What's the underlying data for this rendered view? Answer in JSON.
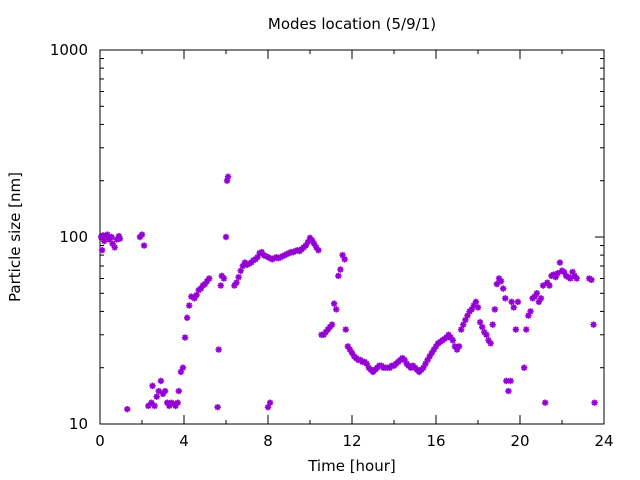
{
  "chart_data": {
    "type": "scatter",
    "title": "Modes location (5/9/1)",
    "xlabel": "Time [hour]",
    "ylabel": "Particle size [nm]",
    "xlim": [
      0,
      24
    ],
    "ylim": [
      10,
      1000
    ],
    "y_scale": "log",
    "x_ticks": [
      0,
      4,
      8,
      12,
      16,
      20,
      24
    ],
    "x_tick_labels": [
      "0",
      "4",
      "8",
      "12",
      "16",
      "20",
      "24"
    ],
    "y_ticks": [
      10,
      100,
      1000
    ],
    "y_tick_labels": [
      "10",
      "100",
      "1000"
    ],
    "grid": false,
    "marker": "asterisk",
    "color": "#9400d3",
    "points": [
      [
        0.05,
        100
      ],
      [
        0.1,
        85
      ],
      [
        0.15,
        102
      ],
      [
        0.2,
        95
      ],
      [
        0.3,
        101
      ],
      [
        0.35,
        103
      ],
      [
        0.45,
        97
      ],
      [
        0.55,
        100
      ],
      [
        0.6,
        92
      ],
      [
        0.7,
        88
      ],
      [
        0.8,
        97
      ],
      [
        0.9,
        101
      ],
      [
        0.95,
        98
      ],
      [
        1.3,
        12
      ],
      [
        1.9,
        100
      ],
      [
        2.0,
        103
      ],
      [
        2.1,
        90
      ],
      [
        2.3,
        12.5
      ],
      [
        2.45,
        13
      ],
      [
        2.5,
        16
      ],
      [
        2.6,
        12.5
      ],
      [
        2.7,
        14
      ],
      [
        2.8,
        15
      ],
      [
        2.9,
        17
      ],
      [
        3.0,
        14.5
      ],
      [
        3.1,
        15
      ],
      [
        3.2,
        13
      ],
      [
        3.3,
        12.5
      ],
      [
        3.4,
        13
      ],
      [
        3.5,
        12.8
      ],
      [
        3.6,
        12.5
      ],
      [
        3.7,
        13
      ],
      [
        3.75,
        15
      ],
      [
        3.85,
        19
      ],
      [
        3.95,
        20
      ],
      [
        4.05,
        29
      ],
      [
        4.15,
        37
      ],
      [
        4.25,
        43
      ],
      [
        4.35,
        48
      ],
      [
        4.5,
        47
      ],
      [
        4.6,
        49
      ],
      [
        4.7,
        52
      ],
      [
        4.8,
        53
      ],
      [
        4.9,
        55
      ],
      [
        5.0,
        56
      ],
      [
        5.1,
        58
      ],
      [
        5.2,
        60
      ],
      [
        5.6,
        12.3
      ],
      [
        5.65,
        25
      ],
      [
        5.75,
        55
      ],
      [
        5.8,
        62
      ],
      [
        5.9,
        60
      ],
      [
        6.0,
        100
      ],
      [
        6.05,
        200
      ],
      [
        6.1,
        210
      ],
      [
        6.4,
        55
      ],
      [
        6.5,
        57
      ],
      [
        6.6,
        61
      ],
      [
        6.7,
        66
      ],
      [
        6.8,
        70
      ],
      [
        6.9,
        73
      ],
      [
        7.0,
        71
      ],
      [
        7.1,
        72
      ],
      [
        7.2,
        73
      ],
      [
        7.3,
        75
      ],
      [
        7.4,
        76
      ],
      [
        7.5,
        78
      ],
      [
        7.6,
        82
      ],
      [
        7.7,
        83
      ],
      [
        7.8,
        80
      ],
      [
        7.9,
        79
      ],
      [
        8.0,
        78
      ],
      [
        8.1,
        77
      ],
      [
        8.2,
        76
      ],
      [
        8.3,
        77
      ],
      [
        8.4,
        78
      ],
      [
        8.5,
        77
      ],
      [
        8.6,
        78
      ],
      [
        8.7,
        79
      ],
      [
        8.8,
        80
      ],
      [
        8.9,
        81
      ],
      [
        9.0,
        82
      ],
      [
        9.1,
        83
      ],
      [
        9.2,
        83
      ],
      [
        9.3,
        84
      ],
      [
        9.4,
        85
      ],
      [
        9.5,
        84
      ],
      [
        9.6,
        86
      ],
      [
        9.7,
        88
      ],
      [
        9.8,
        90
      ],
      [
        9.9,
        94
      ],
      [
        10.0,
        99
      ],
      [
        10.1,
        96
      ],
      [
        10.2,
        92
      ],
      [
        10.3,
        88
      ],
      [
        10.4,
        85
      ],
      [
        8.0,
        12.3
      ],
      [
        8.1,
        13
      ],
      [
        10.55,
        30
      ],
      [
        10.65,
        30
      ],
      [
        10.75,
        31
      ],
      [
        10.85,
        32
      ],
      [
        10.95,
        33
      ],
      [
        11.05,
        34
      ],
      [
        11.15,
        44
      ],
      [
        11.25,
        41
      ],
      [
        11.35,
        62
      ],
      [
        11.45,
        67
      ],
      [
        11.55,
        80
      ],
      [
        11.65,
        76
      ],
      [
        11.7,
        32
      ],
      [
        11.8,
        26
      ],
      [
        11.9,
        25
      ],
      [
        12.0,
        24
      ],
      [
        12.1,
        23
      ],
      [
        12.2,
        22.5
      ],
      [
        12.3,
        22
      ],
      [
        12.4,
        22
      ],
      [
        12.5,
        21.5
      ],
      [
        12.6,
        21.5
      ],
      [
        12.7,
        21
      ],
      [
        12.8,
        20
      ],
      [
        12.9,
        19.5
      ],
      [
        13.0,
        19
      ],
      [
        13.1,
        19.5
      ],
      [
        13.2,
        20
      ],
      [
        13.3,
        20.5
      ],
      [
        13.4,
        20.5
      ],
      [
        13.5,
        20
      ],
      [
        13.6,
        20
      ],
      [
        13.7,
        20
      ],
      [
        13.8,
        20
      ],
      [
        13.9,
        20.5
      ],
      [
        14.0,
        20.5
      ],
      [
        14.1,
        21
      ],
      [
        14.2,
        21.5
      ],
      [
        14.3,
        22
      ],
      [
        14.4,
        22.5
      ],
      [
        14.5,
        22
      ],
      [
        14.6,
        21
      ],
      [
        14.7,
        20.5
      ],
      [
        14.8,
        20
      ],
      [
        14.9,
        20.5
      ],
      [
        15.0,
        20
      ],
      [
        15.1,
        19.5
      ],
      [
        15.2,
        19
      ],
      [
        15.3,
        19.5
      ],
      [
        15.4,
        20
      ],
      [
        15.5,
        21
      ],
      [
        15.6,
        22
      ],
      [
        15.7,
        23
      ],
      [
        15.8,
        24
      ],
      [
        15.9,
        25
      ],
      [
        16.0,
        26
      ],
      [
        16.1,
        27
      ],
      [
        16.2,
        27.5
      ],
      [
        16.3,
        28
      ],
      [
        16.4,
        28.5
      ],
      [
        16.5,
        29
      ],
      [
        16.6,
        30
      ],
      [
        16.7,
        29
      ],
      [
        16.8,
        28
      ],
      [
        16.9,
        26
      ],
      [
        17.0,
        25
      ],
      [
        17.1,
        26
      ],
      [
        17.2,
        32
      ],
      [
        17.3,
        34
      ],
      [
        17.4,
        36
      ],
      [
        17.5,
        38
      ],
      [
        17.6,
        40
      ],
      [
        17.7,
        41
      ],
      [
        17.8,
        43
      ],
      [
        17.9,
        45
      ],
      [
        18.0,
        42
      ],
      [
        18.1,
        35
      ],
      [
        18.2,
        33
      ],
      [
        18.3,
        31
      ],
      [
        18.4,
        30
      ],
      [
        18.5,
        28
      ],
      [
        18.6,
        27
      ],
      [
        18.7,
        34
      ],
      [
        18.8,
        41
      ],
      [
        18.9,
        56
      ],
      [
        19.0,
        60
      ],
      [
        19.1,
        58
      ],
      [
        19.2,
        53
      ],
      [
        19.3,
        47
      ],
      [
        19.35,
        17
      ],
      [
        19.45,
        15
      ],
      [
        19.55,
        17
      ],
      [
        19.6,
        45
      ],
      [
        19.7,
        42
      ],
      [
        19.8,
        32
      ],
      [
        19.9,
        45
      ],
      [
        20.2,
        20
      ],
      [
        20.3,
        32
      ],
      [
        20.4,
        38
      ],
      [
        20.5,
        40
      ],
      [
        20.6,
        47
      ],
      [
        20.7,
        48
      ],
      [
        20.8,
        50
      ],
      [
        20.9,
        45
      ],
      [
        21.0,
        47
      ],
      [
        21.1,
        55
      ],
      [
        21.2,
        13
      ],
      [
        21.3,
        57
      ],
      [
        21.4,
        55
      ],
      [
        21.5,
        62
      ],
      [
        21.6,
        63
      ],
      [
        21.7,
        61
      ],
      [
        21.8,
        64
      ],
      [
        21.9,
        73
      ],
      [
        22.0,
        66
      ],
      [
        22.1,
        65
      ],
      [
        22.2,
        62
      ],
      [
        22.3,
        61
      ],
      [
        22.4,
        60
      ],
      [
        22.5,
        65
      ],
      [
        22.6,
        62
      ],
      [
        22.7,
        60
      ],
      [
        23.3,
        60
      ],
      [
        23.4,
        59
      ],
      [
        23.5,
        34
      ],
      [
        23.55,
        13
      ]
    ]
  }
}
